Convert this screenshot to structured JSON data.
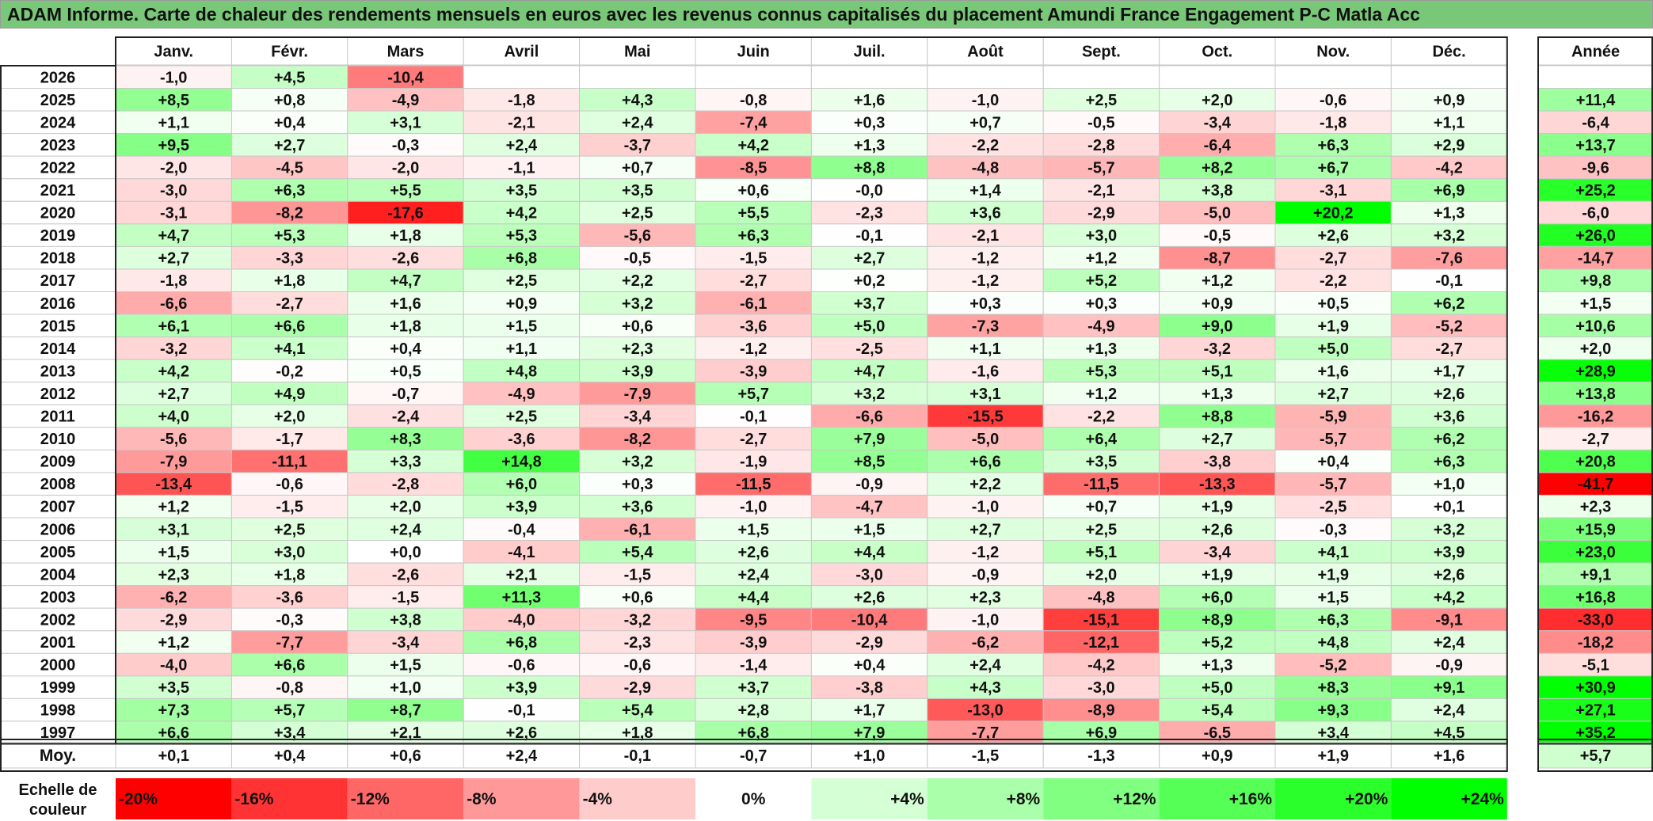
{
  "title": "ADAM Informe. Carte de chaleur des rendements mensuels en euros avec les revenus connus capitalisés du placement Amundi France Engagement P-C Matla Acc",
  "colors": {
    "title_bg": "#79c879",
    "neg_max": "#ff0000",
    "pos_max": "#00ff00",
    "neutral": "#ffffff"
  },
  "chart_data": {
    "type": "heatmap",
    "months": [
      "Janv.",
      "Févr.",
      "Mars",
      "Avril",
      "Mai",
      "Juin",
      "Juil.",
      "Août",
      "Sept.",
      "Oct.",
      "Nov.",
      "Déc."
    ],
    "year_header": "Année",
    "rows": [
      {
        "year": "2026",
        "m": [
          "-1,0",
          "+4,5",
          "-10,4",
          "",
          "",
          "",
          "",
          "",
          "",
          "",
          "",
          ""
        ],
        "y": ""
      },
      {
        "year": "2025",
        "m": [
          "+8,5",
          "+0,8",
          "-4,9",
          "-1,8",
          "+4,3",
          "-0,8",
          "+1,6",
          "-1,0",
          "+2,5",
          "+2,0",
          "-0,6",
          "+0,9"
        ],
        "y": "+11,4"
      },
      {
        "year": "2024",
        "m": [
          "+1,1",
          "+0,4",
          "+3,1",
          "-2,1",
          "+2,4",
          "-7,4",
          "+0,3",
          "+0,7",
          "-0,5",
          "-3,4",
          "-1,8",
          "+1,1"
        ],
        "y": "-6,4"
      },
      {
        "year": "2023",
        "m": [
          "+9,5",
          "+2,7",
          "-0,3",
          "+2,4",
          "-3,7",
          "+4,2",
          "+1,3",
          "-2,2",
          "-2,8",
          "-6,4",
          "+6,3",
          "+2,9"
        ],
        "y": "+13,7"
      },
      {
        "year": "2022",
        "m": [
          "-2,0",
          "-4,5",
          "-2,0",
          "-1,1",
          "+0,7",
          "-8,5",
          "+8,8",
          "-4,8",
          "-5,7",
          "+8,2",
          "+6,7",
          "-4,2"
        ],
        "y": "-9,6"
      },
      {
        "year": "2021",
        "m": [
          "-3,0",
          "+6,3",
          "+5,5",
          "+3,5",
          "+3,5",
          "+0,6",
          "-0,0",
          "+1,4",
          "-2,1",
          "+3,8",
          "-3,1",
          "+6,9"
        ],
        "y": "+25,2"
      },
      {
        "year": "2020",
        "m": [
          "-3,1",
          "-8,2",
          "-17,6",
          "+4,2",
          "+2,5",
          "+5,5",
          "-2,3",
          "+3,6",
          "-2,9",
          "-5,0",
          "+20,2",
          "+1,3"
        ],
        "y": "-6,0"
      },
      {
        "year": "2019",
        "m": [
          "+4,7",
          "+5,3",
          "+1,8",
          "+5,3",
          "-5,6",
          "+6,3",
          "-0,1",
          "-2,1",
          "+3,0",
          "-0,5",
          "+2,6",
          "+3,2"
        ],
        "y": "+26,0"
      },
      {
        "year": "2018",
        "m": [
          "+2,7",
          "-3,3",
          "-2,6",
          "+6,8",
          "-0,5",
          "-1,5",
          "+2,7",
          "-1,2",
          "+1,2",
          "-8,7",
          "-2,7",
          "-7,6"
        ],
        "y": "-14,7"
      },
      {
        "year": "2017",
        "m": [
          "-1,8",
          "+1,8",
          "+4,7",
          "+2,5",
          "+2,2",
          "-2,7",
          "+0,2",
          "-1,2",
          "+5,2",
          "+1,2",
          "-2,2",
          "-0,1"
        ],
        "y": "+9,8"
      },
      {
        "year": "2016",
        "m": [
          "-6,6",
          "-2,7",
          "+1,6",
          "+0,9",
          "+3,2",
          "-6,1",
          "+3,7",
          "+0,3",
          "+0,3",
          "+0,9",
          "+0,5",
          "+6,2"
        ],
        "y": "+1,5"
      },
      {
        "year": "2015",
        "m": [
          "+6,1",
          "+6,6",
          "+1,8",
          "+1,5",
          "+0,6",
          "-3,6",
          "+5,0",
          "-7,3",
          "-4,9",
          "+9,0",
          "+1,9",
          "-5,2"
        ],
        "y": "+10,6"
      },
      {
        "year": "2014",
        "m": [
          "-3,2",
          "+4,1",
          "+0,4",
          "+1,1",
          "+2,3",
          "-1,2",
          "-2,5",
          "+1,1",
          "+1,3",
          "-3,2",
          "+5,0",
          "-2,7"
        ],
        "y": "+2,0"
      },
      {
        "year": "2013",
        "m": [
          "+4,2",
          "-0,2",
          "+0,5",
          "+4,8",
          "+3,9",
          "-3,9",
          "+4,7",
          "-1,6",
          "+5,3",
          "+5,1",
          "+1,6",
          "+1,7"
        ],
        "y": "+28,9"
      },
      {
        "year": "2012",
        "m": [
          "+2,7",
          "+4,9",
          "-0,7",
          "-4,9",
          "-7,9",
          "+5,7",
          "+3,2",
          "+3,1",
          "+1,2",
          "+1,3",
          "+2,7",
          "+2,6"
        ],
        "y": "+13,8"
      },
      {
        "year": "2011",
        "m": [
          "+4,0",
          "+2,0",
          "-2,4",
          "+2,5",
          "-3,4",
          "-0,1",
          "-6,6",
          "-15,5",
          "-2,2",
          "+8,8",
          "-5,9",
          "+3,6"
        ],
        "y": "-16,2"
      },
      {
        "year": "2010",
        "m": [
          "-5,6",
          "-1,7",
          "+8,3",
          "-3,6",
          "-8,2",
          "-2,7",
          "+7,9",
          "-5,0",
          "+6,4",
          "+2,7",
          "-5,7",
          "+6,2"
        ],
        "y": "-2,7"
      },
      {
        "year": "2009",
        "m": [
          "-7,9",
          "-11,1",
          "+3,3",
          "+14,8",
          "+3,2",
          "-1,9",
          "+8,5",
          "+6,6",
          "+3,5",
          "-3,8",
          "+0,4",
          "+6,3"
        ],
        "y": "+20,8"
      },
      {
        "year": "2008",
        "m": [
          "-13,4",
          "-0,6",
          "-2,8",
          "+6,0",
          "+0,3",
          "-11,5",
          "-0,9",
          "+2,2",
          "-11,5",
          "-13,3",
          "-5,7",
          "+1,0"
        ],
        "y": "-41,7"
      },
      {
        "year": "2007",
        "m": [
          "+1,2",
          "-1,5",
          "+2,0",
          "+3,9",
          "+3,6",
          "-1,0",
          "-4,7",
          "-1,0",
          "+0,7",
          "+1,9",
          "-2,5",
          "+0,1"
        ],
        "y": "+2,3"
      },
      {
        "year": "2006",
        "m": [
          "+3,1",
          "+2,5",
          "+2,4",
          "-0,4",
          "-6,1",
          "+1,5",
          "+1,5",
          "+2,7",
          "+2,5",
          "+2,6",
          "-0,3",
          "+3,2"
        ],
        "y": "+15,9"
      },
      {
        "year": "2005",
        "m": [
          "+1,5",
          "+3,0",
          "+0,0",
          "-4,1",
          "+5,4",
          "+2,6",
          "+4,4",
          "-1,2",
          "+5,1",
          "-3,4",
          "+4,1",
          "+3,9"
        ],
        "y": "+23,0"
      },
      {
        "year": "2004",
        "m": [
          "+2,3",
          "+1,8",
          "-2,6",
          "+2,1",
          "-1,5",
          "+2,4",
          "-3,0",
          "-0,9",
          "+2,0",
          "+1,9",
          "+1,9",
          "+2,6"
        ],
        "y": "+9,1"
      },
      {
        "year": "2003",
        "m": [
          "-6,2",
          "-3,6",
          "-1,5",
          "+11,3",
          "+0,6",
          "+4,4",
          "+2,6",
          "+2,3",
          "-4,8",
          "+6,0",
          "+1,5",
          "+4,2"
        ],
        "y": "+16,8"
      },
      {
        "year": "2002",
        "m": [
          "-2,9",
          "-0,3",
          "+3,8",
          "-4,0",
          "-3,2",
          "-9,5",
          "-10,4",
          "-1,0",
          "-15,1",
          "+8,9",
          "+6,3",
          "-9,1"
        ],
        "y": "-33,0"
      },
      {
        "year": "2001",
        "m": [
          "+1,2",
          "-7,7",
          "-3,4",
          "+6,8",
          "-2,3",
          "-3,9",
          "-2,9",
          "-6,2",
          "-12,1",
          "+5,2",
          "+4,8",
          "+2,4"
        ],
        "y": "-18,2"
      },
      {
        "year": "2000",
        "m": [
          "-4,0",
          "+6,6",
          "+1,5",
          "-0,6",
          "-0,6",
          "-1,4",
          "+0,4",
          "+2,4",
          "-4,2",
          "+1,3",
          "-5,2",
          "-0,9"
        ],
        "y": "-5,1"
      },
      {
        "year": "1999",
        "m": [
          "+3,5",
          "-0,8",
          "+1,0",
          "+3,9",
          "-2,9",
          "+3,7",
          "-3,8",
          "+4,3",
          "-3,0",
          "+5,0",
          "+8,3",
          "+9,1"
        ],
        "y": "+30,9"
      },
      {
        "year": "1998",
        "m": [
          "+7,3",
          "+5,7",
          "+8,7",
          "-0,1",
          "+5,4",
          "+2,8",
          "+1,7",
          "-13,0",
          "-8,9",
          "+5,4",
          "+9,3",
          "+2,4"
        ],
        "y": "+27,1"
      },
      {
        "year": "1997",
        "m": [
          "+6,6",
          "+3,4",
          "+2,1",
          "+2,6",
          "+1,8",
          "+6,8",
          "+7,9",
          "-7,7",
          "+6,9",
          "-6,5",
          "+3,4",
          "+4,5"
        ],
        "y": "+35,2"
      }
    ],
    "average": {
      "label": "Moy.",
      "m": [
        "+0,1",
        "+0,4",
        "+0,6",
        "+2,4",
        "-0,1",
        "-0,7",
        "+1,0",
        "-1,5",
        "-1,3",
        "+0,9",
        "+1,9",
        "+1,6"
      ],
      "y": "+5,7"
    },
    "scale": {
      "label_line1": "Echelle de",
      "label_line2": "couleur",
      "items": [
        "-20%",
        "-16%",
        "-12%",
        "-8%",
        "-4%",
        "0%",
        "+4%",
        "+8%",
        "+12%",
        "+16%",
        "+20%",
        "+24%"
      ],
      "values": [
        -20,
        -16,
        -12,
        -8,
        -4,
        0,
        4,
        8,
        12,
        16,
        20,
        24
      ]
    }
  }
}
